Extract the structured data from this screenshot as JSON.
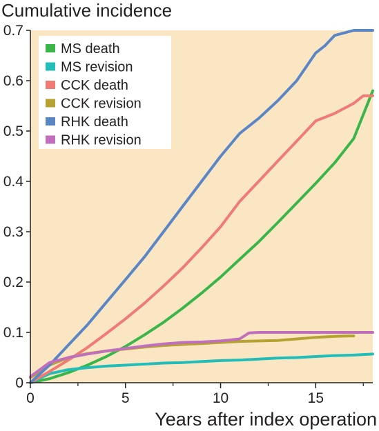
{
  "chart_data": {
    "type": "line",
    "ylabel": "Cumulative incidence",
    "xlabel": "Years after index operation",
    "xlim": [
      0,
      18
    ],
    "ylim": [
      0,
      0.7
    ],
    "xticks": [
      0,
      5,
      10,
      15
    ],
    "xminor": [
      2.5,
      7.5,
      12.5,
      17.5
    ],
    "yticks": [
      0,
      0.1,
      0.2,
      0.3,
      0.4,
      0.5,
      0.6,
      0.7
    ],
    "xtick_labels": [
      "0",
      "5",
      "10",
      "15"
    ],
    "ytick_labels": [
      "0",
      "0.1",
      "0.2",
      "0.3",
      "0.4",
      "0.5",
      "0.6",
      "0.7"
    ],
    "grid": false,
    "legend_position": "top-left",
    "plot_background": "#fbe6c4",
    "series": [
      {
        "name": "MS death",
        "color": "#3ab54a",
        "x": [
          0,
          1,
          2,
          3,
          4,
          5,
          6,
          7,
          8,
          9,
          10,
          11,
          12,
          13,
          14,
          15,
          16,
          17,
          18
        ],
        "y": [
          0,
          0.008,
          0.02,
          0.035,
          0.052,
          0.072,
          0.095,
          0.12,
          0.148,
          0.178,
          0.21,
          0.245,
          0.28,
          0.318,
          0.357,
          0.396,
          0.437,
          0.485,
          0.58
        ]
      },
      {
        "name": "MS revision",
        "color": "#22bcb9",
        "x": [
          0,
          1,
          2,
          3,
          4,
          5,
          6,
          7,
          8,
          9,
          10,
          11,
          12,
          13,
          14,
          15,
          16,
          17,
          18
        ],
        "y": [
          0,
          0.018,
          0.026,
          0.03,
          0.033,
          0.035,
          0.037,
          0.039,
          0.04,
          0.042,
          0.044,
          0.045,
          0.047,
          0.049,
          0.05,
          0.052,
          0.054,
          0.055,
          0.057
        ]
      },
      {
        "name": "CCK death",
        "color": "#f07b72",
        "x": [
          0,
          1,
          2,
          3,
          4,
          5,
          6,
          7,
          8,
          9,
          10,
          11,
          12,
          13,
          14,
          15,
          16,
          17,
          17.5,
          18
        ],
        "y": [
          0,
          0.022,
          0.045,
          0.07,
          0.098,
          0.127,
          0.158,
          0.192,
          0.228,
          0.268,
          0.31,
          0.36,
          0.4,
          0.44,
          0.48,
          0.52,
          0.535,
          0.555,
          0.57,
          0.57
        ]
      },
      {
        "name": "CCK revision",
        "color": "#b5a230",
        "x": [
          0,
          1,
          2,
          3,
          4,
          5,
          6,
          7,
          8,
          9,
          10,
          11,
          12,
          13,
          14,
          15,
          16,
          17
        ],
        "y": [
          0.01,
          0.035,
          0.05,
          0.058,
          0.063,
          0.067,
          0.071,
          0.074,
          0.076,
          0.078,
          0.08,
          0.082,
          0.083,
          0.084,
          0.087,
          0.09,
          0.092,
          0.093
        ]
      },
      {
        "name": "RHK death",
        "color": "#5b86c6",
        "x": [
          0,
          1,
          2,
          3,
          4,
          5,
          6,
          7,
          8,
          9,
          10,
          11,
          12,
          13,
          14,
          15,
          15.5,
          16,
          17,
          18
        ],
        "y": [
          0,
          0.035,
          0.075,
          0.115,
          0.16,
          0.205,
          0.25,
          0.3,
          0.35,
          0.4,
          0.45,
          0.495,
          0.525,
          0.56,
          0.6,
          0.655,
          0.67,
          0.69,
          0.7,
          0.7
        ]
      },
      {
        "name": "RHK revision",
        "color": "#c06fbd",
        "x": [
          0,
          1,
          2,
          3,
          4,
          5,
          6,
          7,
          8,
          9,
          10,
          11,
          11.5,
          12,
          13,
          14,
          15,
          16,
          17,
          18
        ],
        "y": [
          0.012,
          0.04,
          0.05,
          0.057,
          0.063,
          0.068,
          0.073,
          0.077,
          0.08,
          0.081,
          0.083,
          0.087,
          0.099,
          0.1,
          0.1,
          0.1,
          0.1,
          0.1,
          0.1,
          0.1
        ]
      }
    ]
  }
}
